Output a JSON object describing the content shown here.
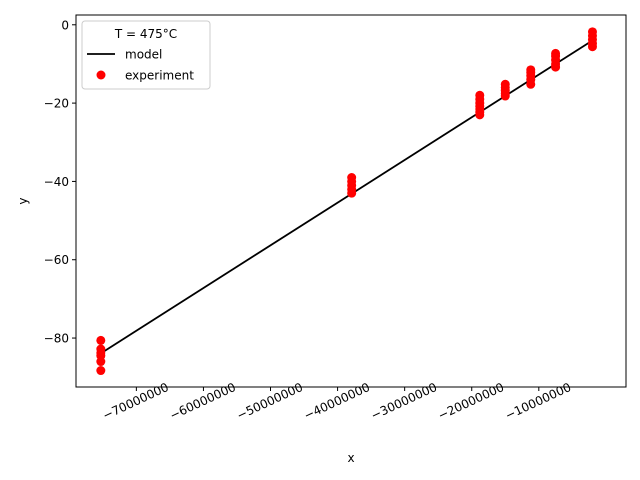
{
  "chart_data": {
    "type": "scatter",
    "xlabel": "x",
    "ylabel": "y",
    "xlim": [
      -79000000,
      3000000
    ],
    "ylim": [
      -92.5,
      2.5
    ],
    "x_ticks": [
      -70000000,
      -60000000,
      -50000000,
      -40000000,
      -30000000,
      -20000000,
      -10000000
    ],
    "x_tick_labels": [
      "−70000000",
      "−60000000",
      "−50000000",
      "−40000000",
      "−30000000",
      "−20000000",
      "−10000000"
    ],
    "y_ticks": [
      0,
      -20,
      -40,
      -60,
      -80
    ],
    "y_tick_labels": [
      "0",
      "−20",
      "−40",
      "−60",
      "−80"
    ],
    "grid": false,
    "legend": {
      "title": "T = 475°C",
      "placement": "top-left",
      "entries": [
        {
          "label": "model",
          "marker": "line",
          "color": "#000000"
        },
        {
          "label": "experiment",
          "marker": "circle",
          "color": "#ff0000"
        }
      ]
    },
    "series": [
      {
        "name": "model",
        "kind": "line",
        "color": "#000000",
        "x": [
          -75300000,
          -2000000
        ],
        "y": [
          -83.9,
          -4.0
        ]
      },
      {
        "name": "experiment",
        "kind": "scatter",
        "color": "#ff0000",
        "x": [
          -75300000,
          -75300000,
          -75300000,
          -75300000,
          -75300000,
          -75300000,
          -37900000,
          -37900000,
          -37900000,
          -37900000,
          -37900000,
          -18800000,
          -18800000,
          -18800000,
          -18800000,
          -18800000,
          -18800000,
          -18800000,
          -15000000,
          -15000000,
          -15000000,
          -15000000,
          -15000000,
          -11200000,
          -11200000,
          -11200000,
          -11200000,
          -11200000,
          -7500000,
          -7500000,
          -7500000,
          -7500000,
          -7500000,
          -2000000,
          -2000000,
          -2000000,
          -2000000,
          -2000000
        ],
        "y": [
          -80.6,
          -82.8,
          -83.8,
          -84.5,
          -86.0,
          -88.3,
          -39.0,
          -40.0,
          -41.0,
          -42.0,
          -43.0,
          -18.0,
          -19.0,
          -20.0,
          -20.8,
          -21.5,
          -22.3,
          -23.0,
          -15.2,
          -16.0,
          -16.8,
          -17.5,
          -18.2,
          -11.5,
          -12.2,
          -13.0,
          -14.0,
          -15.2,
          -7.3,
          -8.0,
          -9.0,
          -10.0,
          -10.8,
          -1.8,
          -2.8,
          -3.8,
          -4.8,
          -5.6
        ]
      }
    ]
  }
}
